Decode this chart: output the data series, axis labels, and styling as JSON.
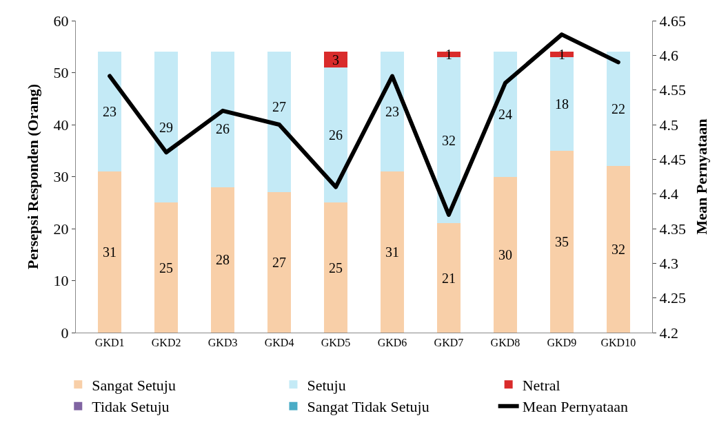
{
  "chart_data": {
    "type": "bar",
    "stacked": true,
    "ylabel": "Persepsi Responden (Orang)",
    "y2label": "Mean Pernyataan",
    "categories": [
      "GKD1",
      "GKD2",
      "GKD3",
      "GKD4",
      "GKD5",
      "GKD6",
      "GKD7",
      "GKD8",
      "GKD9",
      "GKD10"
    ],
    "series": [
      {
        "name": "Sangat Setuju",
        "color": "#f8cfa8",
        "values": [
          31,
          25,
          28,
          27,
          25,
          31,
          21,
          30,
          35,
          32
        ],
        "value_labels": [
          "31",
          "25",
          "28",
          "27",
          "25",
          "31",
          "21",
          "30",
          "35",
          "32"
        ]
      },
      {
        "name": "Setuju",
        "color": "#c4eaf6",
        "values": [
          23,
          29,
          26,
          27,
          26,
          23,
          32,
          24,
          18,
          22
        ],
        "value_labels": [
          "23",
          "29",
          "26",
          "27",
          "26",
          "23",
          "32",
          "24",
          "18",
          "22"
        ]
      },
      {
        "name": "Netral",
        "color": "#d92b2b",
        "values": [
          0,
          0,
          0,
          0,
          3,
          0,
          1,
          0,
          1,
          0
        ],
        "value_labels": [
          null,
          null,
          null,
          null,
          "3",
          null,
          "1",
          null,
          "1",
          null
        ]
      },
      {
        "name": "Tidak Setuju",
        "color": "#8064a2",
        "values": [
          0,
          0,
          0,
          0,
          0,
          0,
          0,
          0,
          0,
          0
        ]
      },
      {
        "name": "Sangat Tidak Setuju",
        "color": "#4bacc6",
        "values": [
          0,
          0,
          0,
          0,
          0,
          0,
          0,
          0,
          0,
          0
        ]
      },
      {
        "name": "Mean Pernyataan",
        "type": "line",
        "axis": "y2",
        "color": "#000000",
        "values": [
          4.57,
          4.46,
          4.52,
          4.5,
          4.41,
          4.57,
          4.37,
          4.56,
          4.63,
          4.59
        ]
      }
    ],
    "ylim": [
      0,
      60
    ],
    "yticks": [
      0,
      10,
      20,
      30,
      40,
      50,
      60
    ],
    "y2lim": [
      4.2,
      4.65
    ],
    "y2ticks": [
      4.2,
      4.25,
      4.3,
      4.35,
      4.4,
      4.45,
      4.5,
      4.55,
      4.6,
      4.65
    ],
    "legend": "bottom",
    "marker": "none",
    "line_style": "solid"
  }
}
